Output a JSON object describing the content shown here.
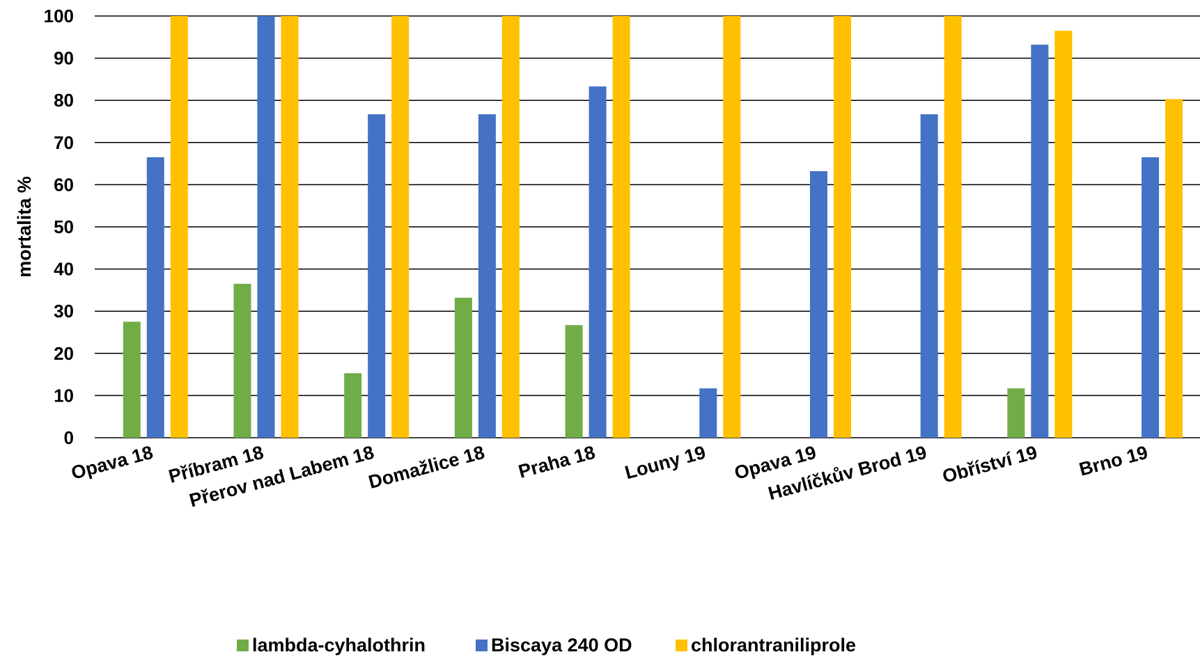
{
  "chart_data": {
    "type": "bar",
    "title": "",
    "xlabel": "",
    "ylabel": "mortalita %",
    "ylim": [
      0,
      100
    ],
    "yticks": [
      0,
      10,
      20,
      30,
      40,
      50,
      60,
      70,
      80,
      90,
      100
    ],
    "grid": true,
    "legend_position": "bottom",
    "categories": [
      "Opava 18",
      "Příbram 18",
      "Přerov nad Labem 18",
      "Domažlice 18",
      "Praha 18",
      "Louny 19",
      "Opava 19",
      "Havlíčkův Brod 19",
      "Obříství 19",
      "Brno 19"
    ],
    "series": [
      {
        "name": "lambda-cyhalothrin",
        "color": "#70ad47",
        "values": [
          27.5,
          36.5,
          15.3,
          33.2,
          26.7,
          0,
          0,
          0,
          11.7,
          0
        ]
      },
      {
        "name": "Biscaya 240 OD",
        "color": "#4472c4",
        "values": [
          66.5,
          100,
          76.7,
          76.7,
          83.3,
          11.7,
          63.2,
          76.7,
          93.2,
          66.5
        ]
      },
      {
        "name": "chlorantraniliprole",
        "color": "#ffc000",
        "values": [
          100,
          100,
          100,
          100,
          100,
          100,
          100,
          100,
          96.5,
          80.3
        ]
      }
    ]
  }
}
